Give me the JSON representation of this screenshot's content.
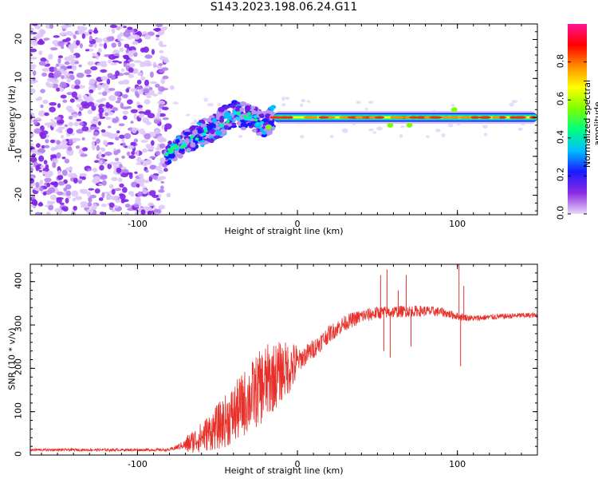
{
  "figure": {
    "title": "S143.2023.198.06.24.G11"
  },
  "chart_data": [
    {
      "type": "heatmap",
      "panel": "top",
      "title": "S143.2023.198.06.24.G11",
      "xlabel": "Height of straight line (km)",
      "ylabel": "Frequency (Hz)",
      "xlim": [
        -167,
        150
      ],
      "ylim": [
        -25,
        24
      ],
      "xticks": [
        -100,
        0,
        100
      ],
      "yticks": [
        -20,
        -10,
        0,
        10,
        20
      ],
      "colorbar": {
        "label": "Normalized spectral amplitude",
        "range": [
          0.0,
          1.0
        ],
        "ticks": [
          "0.0",
          "0.2",
          "0.4",
          "0.6",
          "0.8"
        ],
        "colormap": [
          "#e8d8f8",
          "#8a2be2",
          "#1a1aff",
          "#00bfff",
          "#00ff7f",
          "#7fff00",
          "#ffff00",
          "#ff8c00",
          "#ff0000",
          "#ff1493"
        ]
      },
      "features": [
        {
          "name": "noise",
          "x_range": [
            -167,
            -82
          ],
          "amplitude": 0.1
        },
        {
          "name": "rising_track",
          "points": [
            [
              -82,
              -9.5
            ],
            [
              -70,
              -6.5
            ],
            [
              -60,
              -4
            ],
            [
              -50,
              -2
            ],
            [
              -40,
              1
            ],
            [
              -30,
              0
            ],
            [
              -20,
              -2
            ],
            [
              -15,
              0
            ]
          ],
          "amplitude": 0.35
        },
        {
          "name": "stable_carrier",
          "x_range": [
            -15,
            150
          ],
          "frequency": 0,
          "amplitude": 0.95
        }
      ]
    },
    {
      "type": "line",
      "panel": "bottom",
      "xlabel": "Height of straight line (km)",
      "ylabel": "SNR (10 * v/v)",
      "xlim": [
        -167,
        150
      ],
      "ylim": [
        0,
        440
      ],
      "xticks": [
        -100,
        0,
        100
      ],
      "yticks": [
        0,
        100,
        200,
        300,
        400
      ],
      "color": "#e8302a",
      "trend": [
        {
          "x": -167,
          "y": 12
        },
        {
          "x": -80,
          "y": 12
        },
        {
          "x": -70,
          "y": 25
        },
        {
          "x": -60,
          "y": 45
        },
        {
          "x": -50,
          "y": 70
        },
        {
          "x": -40,
          "y": 100
        },
        {
          "x": -30,
          "y": 140
        },
        {
          "x": -20,
          "y": 175
        },
        {
          "x": -10,
          "y": 200
        },
        {
          "x": 0,
          "y": 215
        },
        {
          "x": 10,
          "y": 245
        },
        {
          "x": 20,
          "y": 280
        },
        {
          "x": 30,
          "y": 305
        },
        {
          "x": 40,
          "y": 320
        },
        {
          "x": 50,
          "y": 328
        },
        {
          "x": 60,
          "y": 330
        },
        {
          "x": 70,
          "y": 332
        },
        {
          "x": 80,
          "y": 332
        },
        {
          "x": 90,
          "y": 330
        },
        {
          "x": 100,
          "y": 320
        },
        {
          "x": 110,
          "y": 315
        },
        {
          "x": 120,
          "y": 318
        },
        {
          "x": 130,
          "y": 320
        },
        {
          "x": 140,
          "y": 322
        },
        {
          "x": 150,
          "y": 322
        }
      ],
      "noise": [
        {
          "x": -167,
          "amp": 6
        },
        {
          "x": -80,
          "amp": 6
        },
        {
          "x": -60,
          "amp": 35
        },
        {
          "x": -40,
          "amp": 70
        },
        {
          "x": -20,
          "amp": 90
        },
        {
          "x": 0,
          "amp": 50
        },
        {
          "x": 20,
          "amp": 40
        },
        {
          "x": 50,
          "amp": 30
        },
        {
          "x": 80,
          "amp": 25
        },
        {
          "x": 110,
          "amp": 14
        },
        {
          "x": 150,
          "amp": 12
        }
      ],
      "spikes": [
        {
          "x": 52,
          "y": 415
        },
        {
          "x": 54,
          "y": 240
        },
        {
          "x": 56,
          "y": 428
        },
        {
          "x": 58,
          "y": 225
        },
        {
          "x": 63,
          "y": 380
        },
        {
          "x": 68,
          "y": 415
        },
        {
          "x": 71,
          "y": 250
        },
        {
          "x": 101,
          "y": 445
        },
        {
          "x": 102,
          "y": 205
        },
        {
          "x": 104,
          "y": 390
        }
      ]
    }
  ]
}
